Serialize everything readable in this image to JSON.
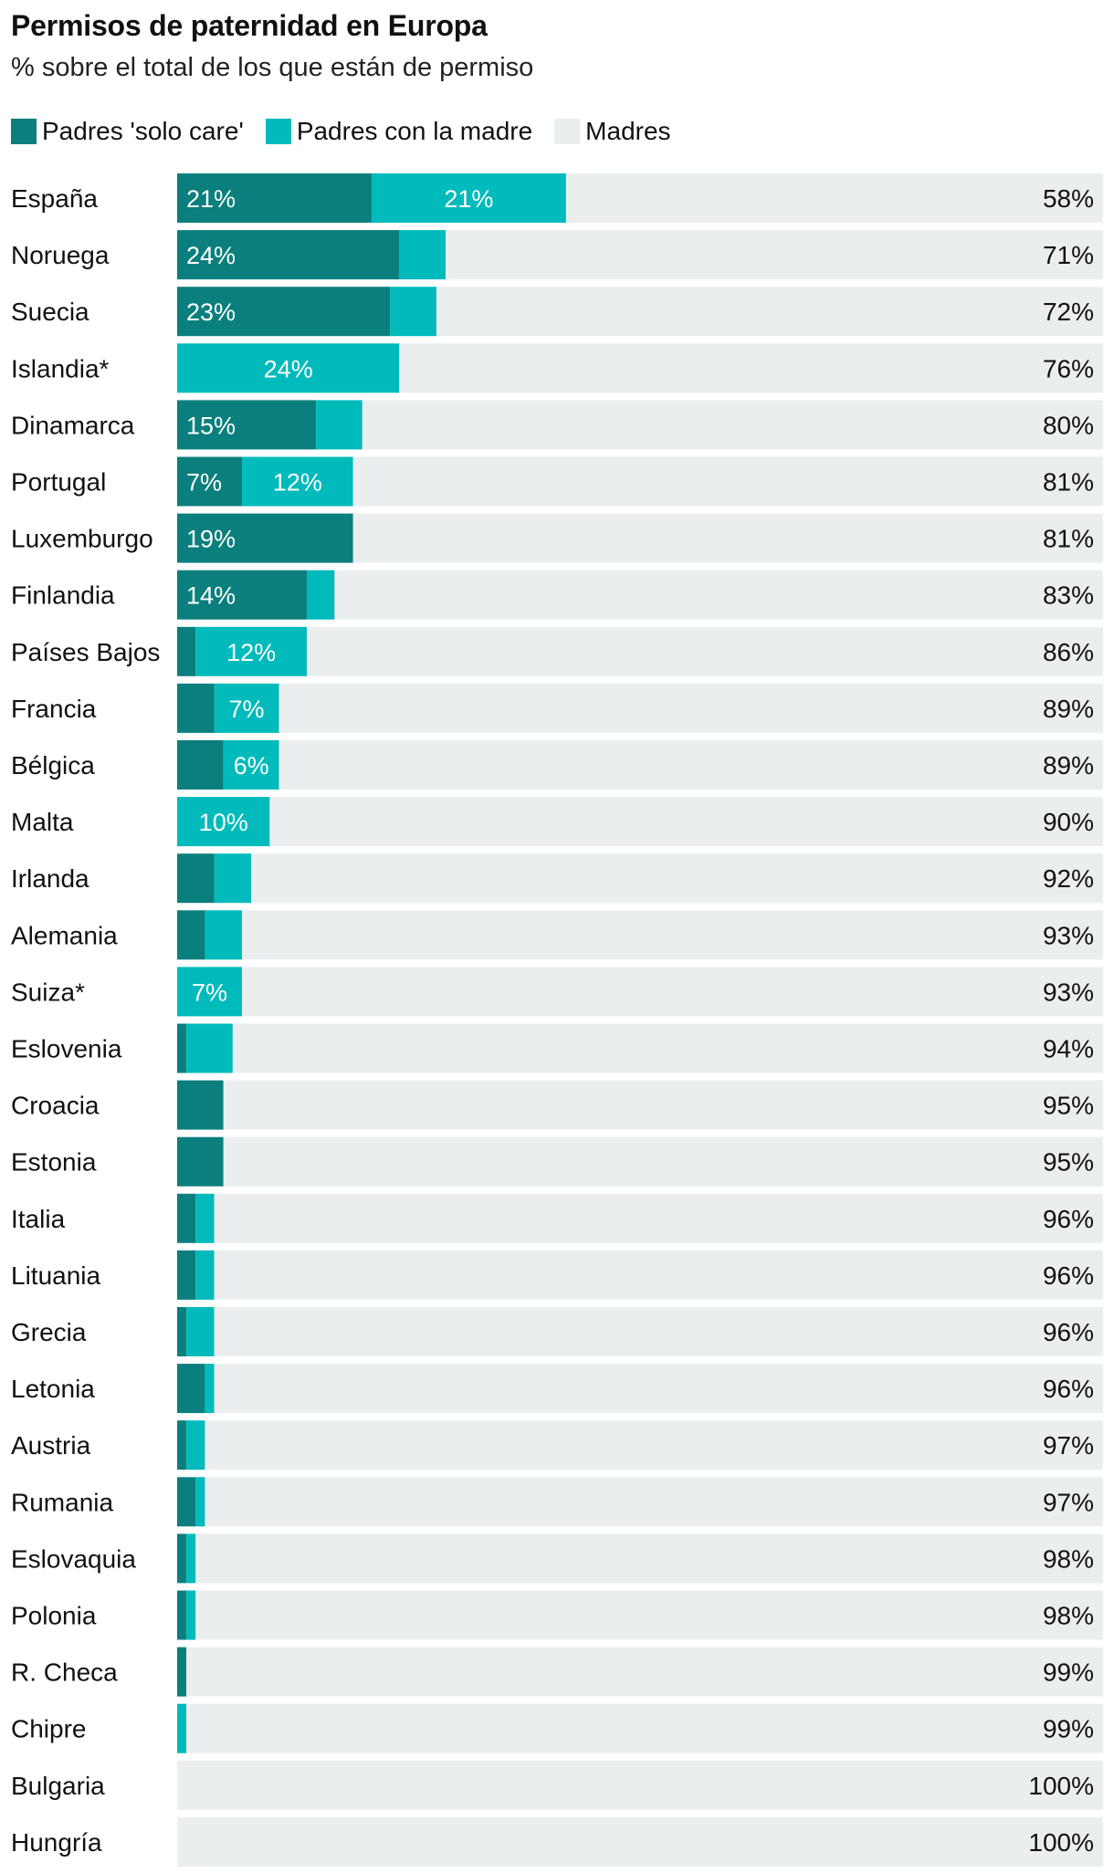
{
  "chart_data": {
    "type": "bar",
    "orientation": "horizontal",
    "stacked": true,
    "title": "Permisos de paternidad en Europa",
    "subtitle": "% sobre el total de los que están de permiso",
    "unit": "%",
    "xlim": [
      0,
      100
    ],
    "legend_position": "top-left",
    "categories": [
      "España",
      "Noruega",
      "Suecia",
      "Islandia*",
      "Dinamarca",
      "Portugal",
      "Luxemburgo",
      "Finlandia",
      "Países Bajos",
      "Francia",
      "Bélgica",
      "Malta",
      "Irlanda",
      "Alemania",
      "Suiza*",
      "Eslovenia",
      "Croacia",
      "Estonia",
      "Italia",
      "Lituania",
      "Grecia",
      "Letonia",
      "Austria",
      "Rumania",
      "Eslovaquia",
      "Polonia",
      "R. Checa",
      "Chipre",
      "Bulgaria",
      "Hungría"
    ],
    "series": [
      {
        "name": "Padres 'solo care'",
        "color": "#0b7f7d",
        "values": [
          21,
          24,
          23,
          0,
          15,
          7,
          19,
          14,
          2,
          4,
          5,
          0,
          4,
          3,
          0,
          1,
          5,
          5,
          2,
          2,
          1,
          3,
          1,
          2,
          1,
          1,
          1,
          0,
          0,
          0
        ],
        "labels": [
          "21%",
          "24%",
          "23%",
          "",
          "15%",
          "7%",
          "19%",
          "14%",
          "",
          "",
          "",
          "",
          "",
          "",
          "",
          "",
          "",
          "",
          "",
          "",
          "",
          "",
          "",
          "",
          "",
          "",
          "",
          "",
          "",
          ""
        ]
      },
      {
        "name": "Padres con la madre",
        "color": "#00babb",
        "values": [
          21,
          5,
          5,
          24,
          5,
          12,
          0,
          3,
          12,
          7,
          6,
          10,
          4,
          4,
          7,
          5,
          0,
          0,
          2,
          2,
          3,
          1,
          2,
          1,
          1,
          1,
          0,
          1,
          0,
          0
        ],
        "labels": [
          "21%",
          "",
          "",
          "24%",
          "",
          "12%",
          "",
          "",
          "12%",
          "7%",
          "6%",
          "10%",
          "",
          "",
          "7%",
          "",
          "",
          "",
          "",
          "",
          "",
          "",
          "",
          "",
          "",
          "",
          "",
          "",
          "",
          ""
        ]
      },
      {
        "name": "Madres",
        "color": "#ebeeef",
        "values": [
          58,
          71,
          72,
          76,
          80,
          81,
          81,
          83,
          86,
          89,
          89,
          90,
          92,
          93,
          93,
          94,
          95,
          95,
          96,
          96,
          96,
          96,
          97,
          97,
          98,
          98,
          99,
          99,
          100,
          100
        ],
        "labels": [
          "58%",
          "71%",
          "72%",
          "76%",
          "80%",
          "81%",
          "81%",
          "83%",
          "86%",
          "89%",
          "89%",
          "90%",
          "92%",
          "93%",
          "93%",
          "94%",
          "95%",
          "95%",
          "96%",
          "96%",
          "96%",
          "96%",
          "97%",
          "97%",
          "98%",
          "98%",
          "99%",
          "99%",
          "100%",
          "100%"
        ]
      }
    ]
  }
}
